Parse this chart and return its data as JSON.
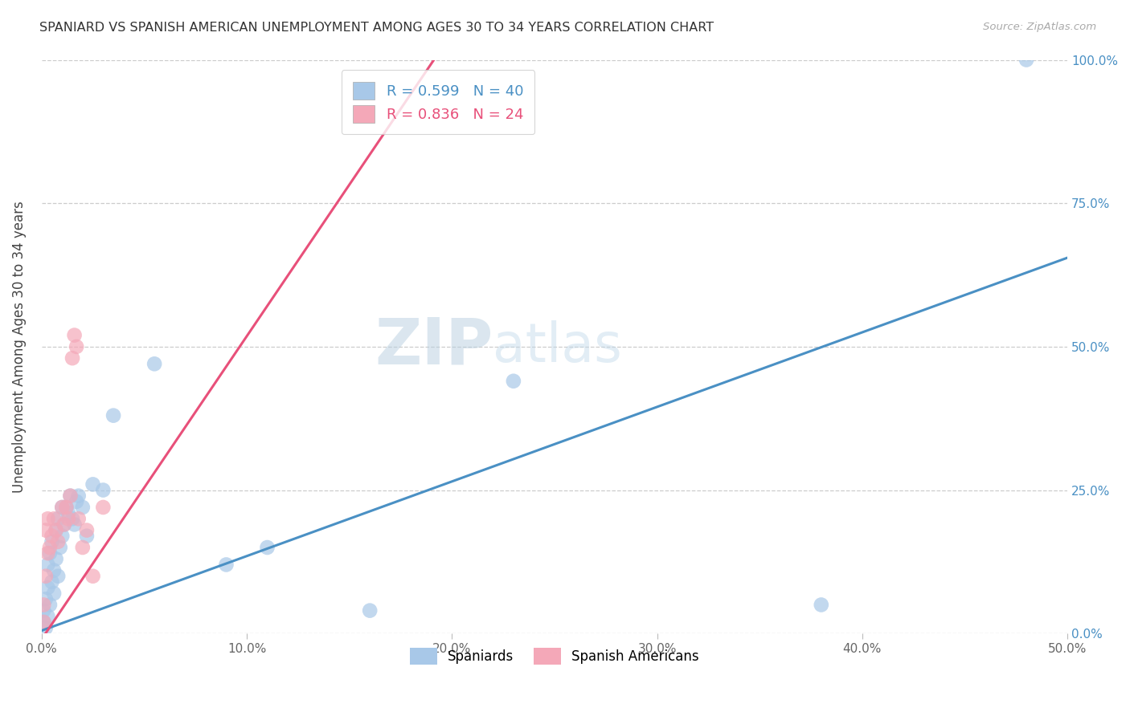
{
  "title": "SPANIARD VS SPANISH AMERICAN UNEMPLOYMENT AMONG AGES 30 TO 34 YEARS CORRELATION CHART",
  "source": "Source: ZipAtlas.com",
  "ylabel": "Unemployment Among Ages 30 to 34 years",
  "xlim": [
    0.0,
    0.5
  ],
  "ylim": [
    0.0,
    1.0
  ],
  "xticks": [
    0.0,
    0.1,
    0.2,
    0.3,
    0.4,
    0.5
  ],
  "xtick_labels": [
    "0.0%",
    "10.0%",
    "20.0%",
    "30.0%",
    "40.0%",
    "50.0%"
  ],
  "yticks": [
    0.0,
    0.25,
    0.5,
    0.75,
    1.0
  ],
  "ytick_labels": [
    "0.0%",
    "25.0%",
    "50.0%",
    "75.0%",
    "100.0%"
  ],
  "blue_scatter_color": "#a8c8e8",
  "pink_scatter_color": "#f4a8b8",
  "blue_line_color": "#4a90c4",
  "pink_line_color": "#e8507a",
  "legend1_label": "R = 0.599   N = 40",
  "legend2_label": "R = 0.836   N = 24",
  "series1_label": "Spaniards",
  "series2_label": "Spanish Americans",
  "watermark": "ZIPatlas",
  "blue_line_x": [
    0.0,
    0.5
  ],
  "blue_line_y": [
    0.005,
    0.655
  ],
  "pink_line_x": [
    0.0,
    0.195
  ],
  "pink_line_y": [
    -0.01,
    1.02
  ],
  "spaniards_x": [
    0.001,
    0.001,
    0.002,
    0.002,
    0.003,
    0.003,
    0.003,
    0.004,
    0.004,
    0.005,
    0.005,
    0.006,
    0.006,
    0.007,
    0.007,
    0.008,
    0.008,
    0.009,
    0.01,
    0.01,
    0.011,
    0.012,
    0.013,
    0.014,
    0.015,
    0.016,
    0.017,
    0.018,
    0.02,
    0.022,
    0.025,
    0.03,
    0.035,
    0.055,
    0.09,
    0.11,
    0.16,
    0.23,
    0.38,
    0.48
  ],
  "spaniards_y": [
    0.02,
    0.04,
    0.01,
    0.06,
    0.03,
    0.08,
    0.12,
    0.05,
    0.14,
    0.09,
    0.16,
    0.07,
    0.11,
    0.13,
    0.18,
    0.1,
    0.2,
    0.15,
    0.17,
    0.22,
    0.19,
    0.22,
    0.21,
    0.24,
    0.2,
    0.19,
    0.23,
    0.24,
    0.22,
    0.17,
    0.26,
    0.25,
    0.38,
    0.47,
    0.12,
    0.15,
    0.04,
    0.44,
    0.05,
    1.0
  ],
  "spanish_americans_x": [
    0.001,
    0.001,
    0.002,
    0.002,
    0.003,
    0.003,
    0.004,
    0.005,
    0.006,
    0.007,
    0.008,
    0.01,
    0.011,
    0.012,
    0.013,
    0.014,
    0.015,
    0.016,
    0.017,
    0.018,
    0.02,
    0.022,
    0.025,
    0.03
  ],
  "spanish_americans_y": [
    0.02,
    0.05,
    0.1,
    0.18,
    0.14,
    0.2,
    0.15,
    0.17,
    0.2,
    0.18,
    0.16,
    0.22,
    0.19,
    0.22,
    0.2,
    0.24,
    0.48,
    0.52,
    0.5,
    0.2,
    0.15,
    0.18,
    0.1,
    0.22
  ]
}
